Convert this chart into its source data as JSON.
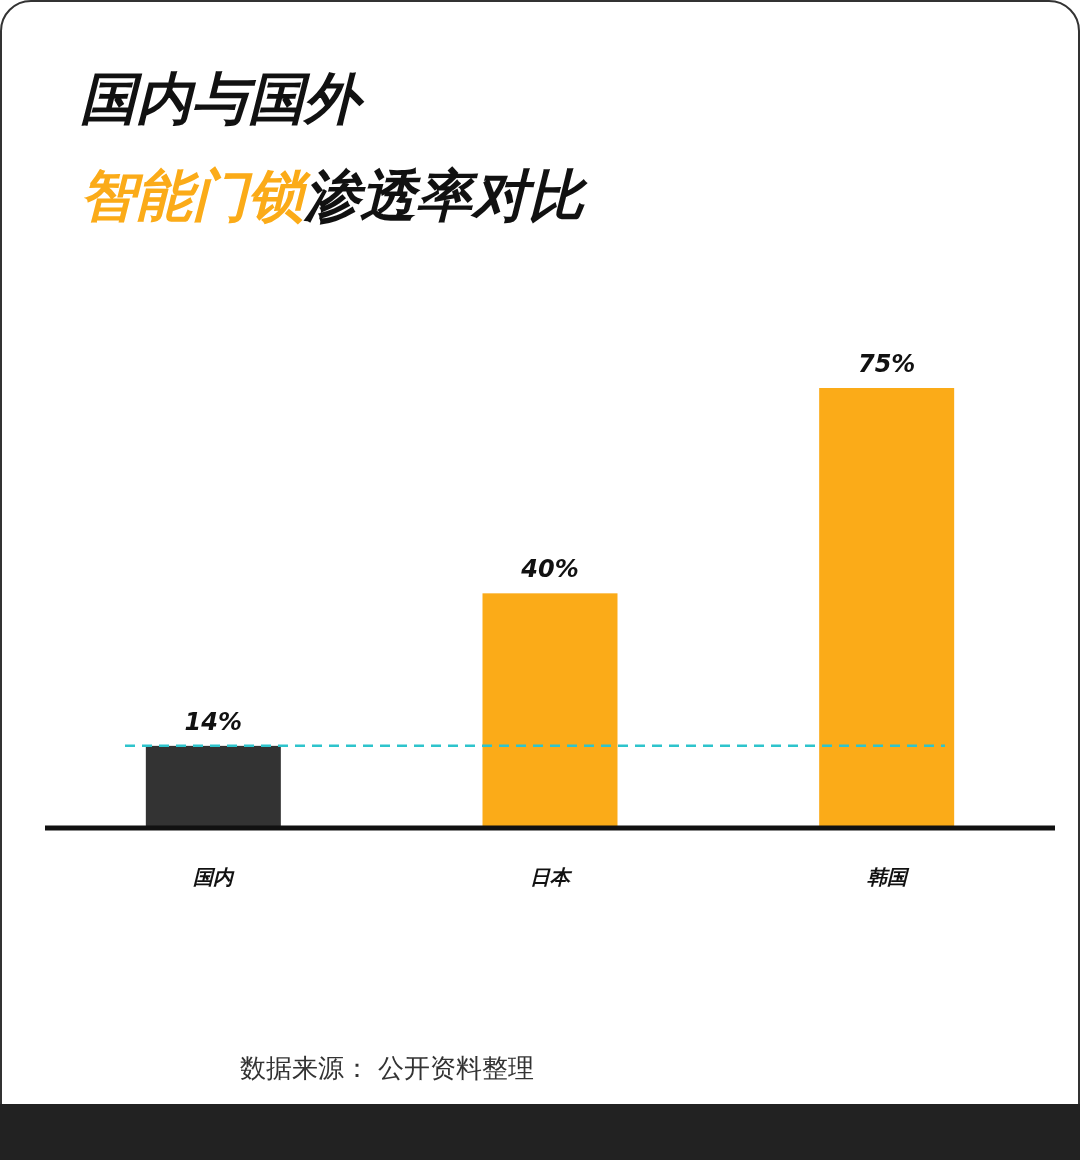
{
  "chart_data": {
    "type": "bar",
    "title": "国内与国外",
    "subtitle": "智能门锁渗透率对比",
    "categories": [
      "国内",
      "日本",
      "韩国"
    ],
    "values": [
      14,
      40,
      75
    ],
    "colors": [
      "#333333",
      "#fbab18",
      "#fbab18"
    ],
    "value_labels": [
      "14%",
      "40%",
      "75%"
    ],
    "ref_lines": [
      {
        "axis": "y",
        "value": 14,
        "color": "#2ec4cc",
        "line_style": "dashed"
      }
    ],
    "annotations": [
      "数据来源： 公开资料整理"
    ]
  }
}
